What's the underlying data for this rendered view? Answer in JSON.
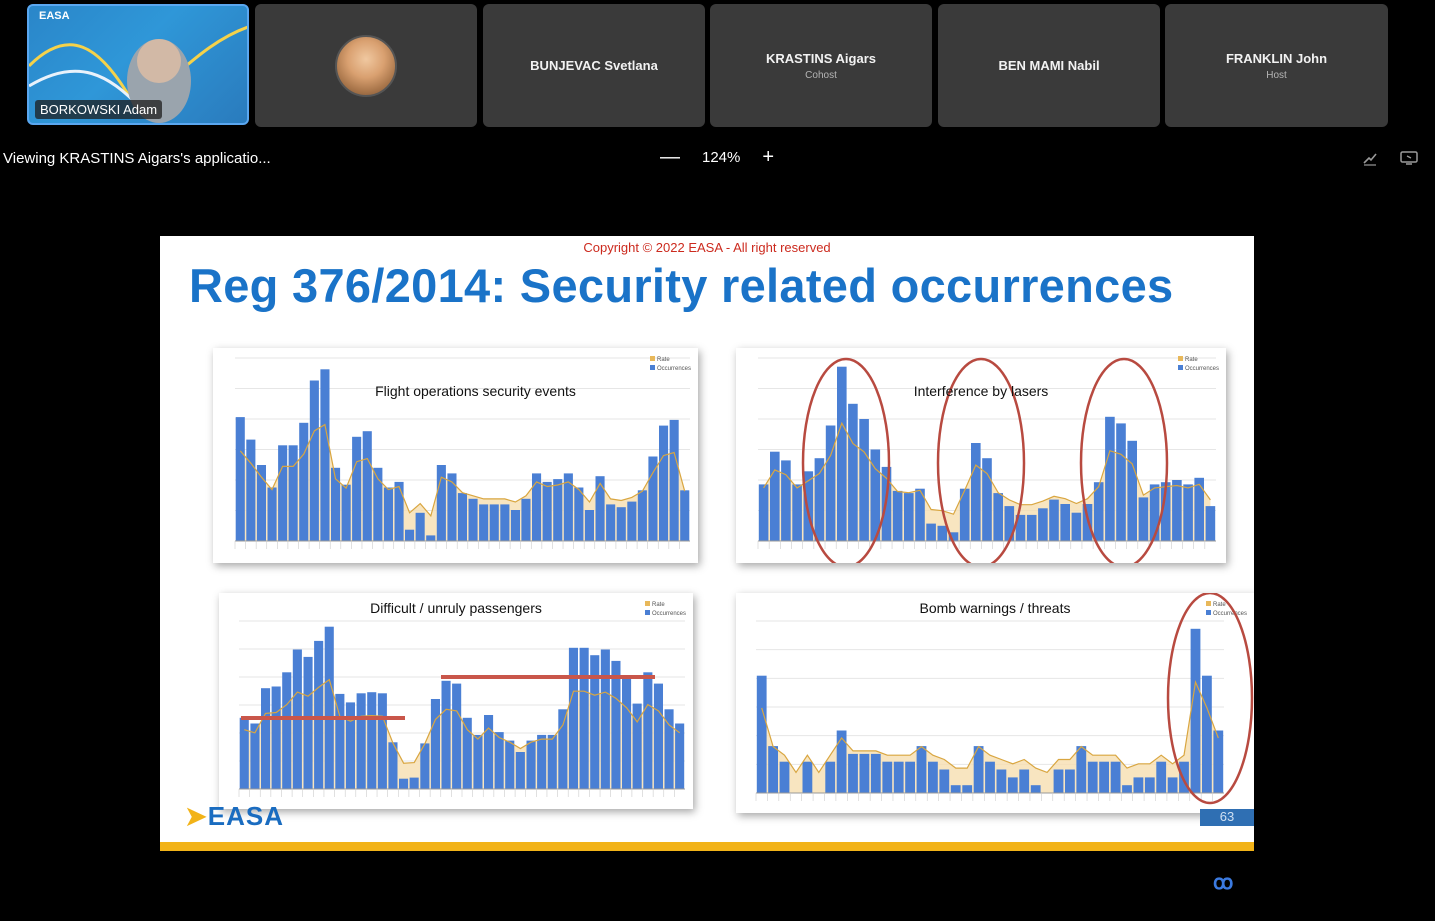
{
  "participants": [
    {
      "name": "BORKOWSKI Adam",
      "role": "",
      "logo_text": "EASA"
    },
    {
      "name": "",
      "role": ""
    },
    {
      "name": "BUNJEVAC Svetlana",
      "role": ""
    },
    {
      "name": "KRASTINS Aigars",
      "role": "Cohost"
    },
    {
      "name": "BEN MAMI Nabil",
      "role": ""
    },
    {
      "name": "FRANKLIN John",
      "role": "Host"
    }
  ],
  "viewing_text": "Viewing KRASTINS Aigars's applicatio...",
  "zoom": {
    "minus": "—",
    "level": "124%",
    "plus": "+"
  },
  "toolbar_icons": [
    "annotate-icon",
    "screen-icon"
  ],
  "slide": {
    "copyright": "Copyright © 2022 EASA - All right reserved",
    "title": "Reg 376/2014: Security related occurrences",
    "logo": "EASA",
    "page_number": "63"
  },
  "colors": {
    "bar": "#4a7fd4",
    "rate": "#e8b85a",
    "ellipse": "#b84a40",
    "hline": "#c9564a",
    "accent": "#1a73c8"
  },
  "chart_data": [
    {
      "type": "bar",
      "title": "Flight operations security events",
      "legend": [
        "Rate",
        "Occurrences"
      ],
      "values": [
        44,
        36,
        27,
        19,
        34,
        34,
        42,
        57,
        61,
        26,
        20,
        37,
        39,
        26,
        19,
        21,
        4,
        10,
        2,
        27,
        24,
        17,
        15,
        13,
        13,
        13,
        11,
        15,
        24,
        21,
        22,
        24,
        19,
        11,
        23,
        13,
        12,
        14,
        18,
        30,
        41,
        43,
        18
      ],
      "ylim": [
        0,
        65
      ]
    },
    {
      "type": "bar",
      "title": "Interference by lasers",
      "legend": [
        "Rate",
        "Occurrences"
      ],
      "values": [
        130,
        205,
        185,
        130,
        160,
        190,
        265,
        400,
        315,
        280,
        210,
        170,
        115,
        110,
        120,
        40,
        35,
        20,
        120,
        225,
        190,
        110,
        80,
        60,
        60,
        75,
        95,
        85,
        65,
        85,
        135,
        285,
        270,
        230,
        100,
        130,
        135,
        140,
        130,
        145,
        80
      ],
      "ylim": [
        0,
        420
      ]
    },
    {
      "type": "bar",
      "title": "Difficult / unruly passengers",
      "legend": [
        "Rate",
        "Occurrences"
      ],
      "values": [
        125,
        115,
        177,
        180,
        205,
        245,
        232,
        260,
        285,
        167,
        152,
        168,
        170,
        168,
        82,
        18,
        20,
        80,
        158,
        190,
        185,
        125,
        95,
        130,
        100,
        85,
        65,
        85,
        95,
        95,
        140,
        248,
        248,
        235,
        245,
        225,
        195,
        150,
        205,
        185,
        140,
        115
      ],
      "ylim": [
        0,
        295
      ]
    },
    {
      "type": "bar",
      "title": "Bomb warnings / threats",
      "legend": [
        "Rate",
        "Occurrences"
      ],
      "values": [
        15,
        6,
        4,
        0,
        4,
        0,
        4,
        8,
        5,
        5,
        5,
        4,
        4,
        4,
        6,
        4,
        3,
        1,
        1,
        6,
        4,
        3,
        2,
        3,
        1,
        0,
        3,
        3,
        6,
        4,
        4,
        4,
        1,
        2,
        2,
        4,
        2,
        4,
        21,
        15,
        8
      ],
      "ylim": [
        0,
        22
      ]
    }
  ]
}
